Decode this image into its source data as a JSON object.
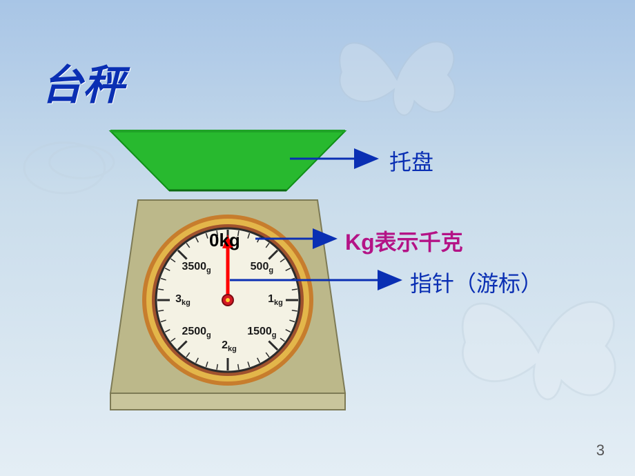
{
  "title": "台秤",
  "page_number": "3",
  "labels": {
    "tray": "托盘",
    "kg": "Kg表示千克",
    "pointer": "指针（游标）"
  },
  "dial": {
    "center": "0kg",
    "marks": [
      {
        "label": "500",
        "unit": "g",
        "angle": 45
      },
      {
        "label": "1",
        "unit": "kg",
        "angle": 90
      },
      {
        "label": "1500",
        "unit": "g",
        "angle": 135
      },
      {
        "label": "2",
        "unit": "kg",
        "angle": 180
      },
      {
        "label": "2500",
        "unit": "g",
        "angle": 225
      },
      {
        "label": "3",
        "unit": "kg",
        "angle": 270
      },
      {
        "label": "3500",
        "unit": "g",
        "angle": 315
      }
    ],
    "pointer_angle": 0,
    "outer_ring_colors": [
      "#e3b64a",
      "#c77d2d",
      "#a0522d"
    ],
    "face_color": "#f4f2e4",
    "center_pin_color": "#d41822"
  },
  "tray": {
    "fill": "#28b92f",
    "stroke": "#0f8f17"
  },
  "base": {
    "top_face": "#bcb88a",
    "front_face": "#c9c59c",
    "side_face": "#a9a57a"
  },
  "arrows": {
    "color": "#0a2fb3",
    "pointer_color": "#ff0000"
  },
  "background": {
    "gradient_top": "#a8c5e6",
    "gradient_bottom": "#e4eef5"
  }
}
